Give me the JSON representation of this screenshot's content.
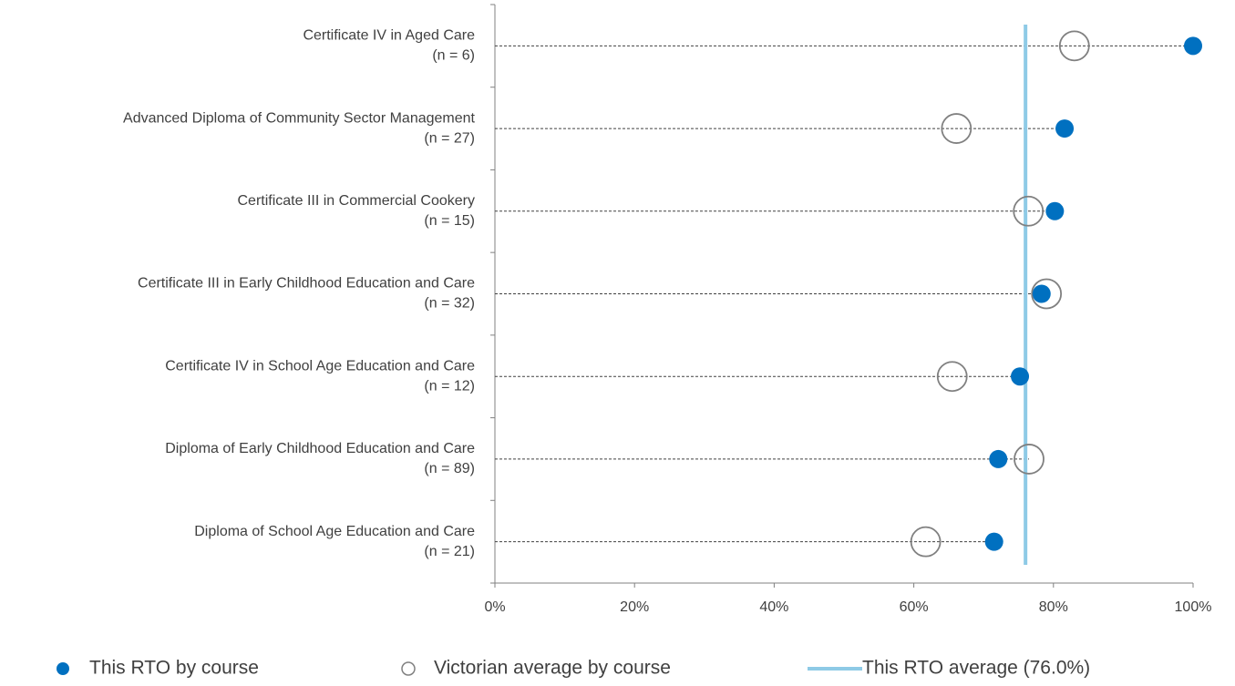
{
  "chart_data": {
    "type": "dot",
    "categories": [
      "Certificate IV in Aged Care",
      "Advanced Diploma of Community Sector Management",
      "Certificate III in Commercial Cookery",
      "Certificate III in Early Childhood Education and Care",
      "Certificate IV in School Age Education and Care",
      "Diploma of Early Childhood Education and Care",
      "Diploma of School Age Education and Care"
    ],
    "category_counts": [
      "(n = 6)",
      "(n = 27)",
      "(n = 15)",
      "(n = 32)",
      "(n = 12)",
      "(n = 89)",
      "(n = 21)"
    ],
    "series": [
      {
        "name": "This RTO by course",
        "color": "#0070c0",
        "marker": "filled",
        "values": [
          100,
          81.6,
          80.2,
          78.3,
          75.2,
          72.1,
          71.5
        ]
      },
      {
        "name": "Victorian average by course",
        "color": "#808080",
        "marker": "hollow",
        "values": [
          83.0,
          66.1,
          76.4,
          79.0,
          65.5,
          76.5,
          61.7
        ]
      }
    ],
    "average": {
      "name": "This RTO average (76.0%)",
      "value": 76,
      "color": "#8ecae6"
    },
    "xlim": [
      0,
      100
    ],
    "xticks": [
      {
        "value": 0,
        "label": "0%"
      },
      {
        "value": 20,
        "label": "20%"
      },
      {
        "value": 40,
        "label": "40%"
      },
      {
        "value": 60,
        "label": "60%"
      },
      {
        "value": 80,
        "label": "80%"
      },
      {
        "value": 100,
        "label": "100%"
      }
    ]
  }
}
